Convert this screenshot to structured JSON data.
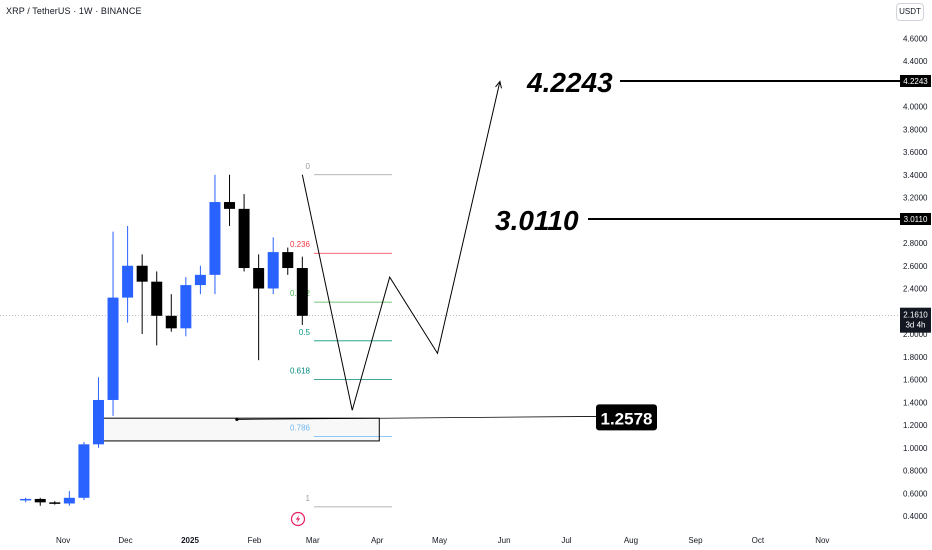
{
  "header": {
    "title": "XRP / TetherUS · 1W · BINANCE",
    "unit_button": "USDT"
  },
  "colors": {
    "up": "#2962ff",
    "down": "#000000",
    "fib_0": "#9e9e9e",
    "fib_236": "#f23645",
    "fib_382": "#4caf50",
    "fib_5": "#089981",
    "fib_618": "#00897b",
    "fib_786": "#64b5f6",
    "fib_1": "#9e9e9e",
    "logo": "#e91e63"
  },
  "icons": {
    "logo": "lightning-logo-icon"
  },
  "chart_data": {
    "type": "candlestick",
    "title": "XRP / TetherUS · 1W · BINANCE",
    "ylim": [
      0.4,
      4.6
    ],
    "y_ticks": [
      "4.6000",
      "4.4000",
      "4.2000",
      "4.0000",
      "3.8000",
      "3.6000",
      "3.4000",
      "3.2000",
      "3.0000",
      "2.8000",
      "2.6000",
      "2.4000",
      "2.2000",
      "2.0000",
      "1.8000",
      "1.6000",
      "1.4000",
      "1.2000",
      "1.0000",
      "0.8000",
      "0.6000",
      "0.4000"
    ],
    "x_ticks": [
      "Nov",
      "Dec",
      "2025",
      "Feb",
      "Mar",
      "Apr",
      "May",
      "Jun",
      "Jul",
      "Aug",
      "Sep",
      "Oct",
      "Nov"
    ],
    "candles": [
      {
        "date": "2024-10-14",
        "o": 0.54,
        "h": 0.56,
        "l": 0.52,
        "c": 0.55
      },
      {
        "date": "2024-10-21",
        "o": 0.55,
        "h": 0.56,
        "l": 0.49,
        "c": 0.52
      },
      {
        "date": "2024-10-28",
        "o": 0.52,
        "h": 0.53,
        "l": 0.5,
        "c": 0.51
      },
      {
        "date": "2024-11-04",
        "o": 0.51,
        "h": 0.62,
        "l": 0.49,
        "c": 0.56
      },
      {
        "date": "2024-11-11",
        "o": 0.56,
        "h": 1.05,
        "l": 0.54,
        "c": 1.03
      },
      {
        "date": "2024-11-18",
        "o": 1.03,
        "h": 1.62,
        "l": 1.0,
        "c": 1.42
      },
      {
        "date": "2024-11-25",
        "o": 1.42,
        "h": 2.9,
        "l": 1.28,
        "c": 2.32
      },
      {
        "date": "2024-12-02",
        "o": 2.32,
        "h": 2.95,
        "l": 2.1,
        "c": 2.6
      },
      {
        "date": "2024-12-09",
        "o": 2.6,
        "h": 2.7,
        "l": 2.0,
        "c": 2.46
      },
      {
        "date": "2024-12-16",
        "o": 2.46,
        "h": 2.55,
        "l": 1.9,
        "c": 2.16
      },
      {
        "date": "2024-12-23",
        "o": 2.16,
        "h": 2.35,
        "l": 2.02,
        "c": 2.05
      },
      {
        "date": "2024-12-30",
        "o": 2.05,
        "h": 2.5,
        "l": 1.98,
        "c": 2.43
      },
      {
        "date": "2025-01-06",
        "o": 2.43,
        "h": 2.6,
        "l": 2.35,
        "c": 2.52
      },
      {
        "date": "2025-01-13",
        "o": 2.52,
        "h": 3.4,
        "l": 2.35,
        "c": 3.16
      },
      {
        "date": "2025-01-20",
        "o": 3.16,
        "h": 3.4,
        "l": 2.95,
        "c": 3.1
      },
      {
        "date": "2025-01-27",
        "o": 3.1,
        "h": 3.23,
        "l": 2.55,
        "c": 2.58
      },
      {
        "date": "2025-02-03",
        "o": 2.58,
        "h": 2.7,
        "l": 1.77,
        "c": 2.4
      },
      {
        "date": "2025-02-10",
        "o": 2.4,
        "h": 2.85,
        "l": 2.35,
        "c": 2.72
      },
      {
        "date": "2025-02-17",
        "o": 2.72,
        "h": 2.76,
        "l": 2.52,
        "c": 2.58
      },
      {
        "date": "2025-02-24",
        "o": 2.58,
        "h": 2.68,
        "l": 2.08,
        "c": 2.16
      }
    ],
    "fib_levels": [
      {
        "label": "0",
        "price": 3.4
      },
      {
        "label": "0.236",
        "price": 2.71
      },
      {
        "label": "0.382",
        "price": 2.28
      },
      {
        "label": "0.5",
        "price": 1.94
      },
      {
        "label": "0.618",
        "price": 1.6
      },
      {
        "label": "0.786",
        "price": 1.1
      },
      {
        "label": "1",
        "price": 0.48
      }
    ],
    "projection_path": [
      {
        "date": "2025-02-24",
        "price": 3.4
      },
      {
        "date": "2025-03-20",
        "price": 1.33
      },
      {
        "date": "2025-04-07",
        "price": 2.5
      },
      {
        "date": "2025-04-30",
        "price": 1.83
      },
      {
        "date": "2025-05-30",
        "price": 4.22
      }
    ],
    "zone": {
      "from": "2024-11-18",
      "to": "2025-04-02",
      "top": 1.26,
      "bottom": 1.06
    },
    "targets": [
      {
        "label": "4.2243",
        "price": 4.2243,
        "axis_tag": "4.2243"
      },
      {
        "label": "3.0110",
        "price": 3.011,
        "axis_tag": "3.0110"
      },
      {
        "label": "1.2578",
        "price": 1.2578
      }
    ],
    "current_price": {
      "value": "2.1610",
      "countdown": "3d 4h",
      "price": 2.161
    }
  }
}
